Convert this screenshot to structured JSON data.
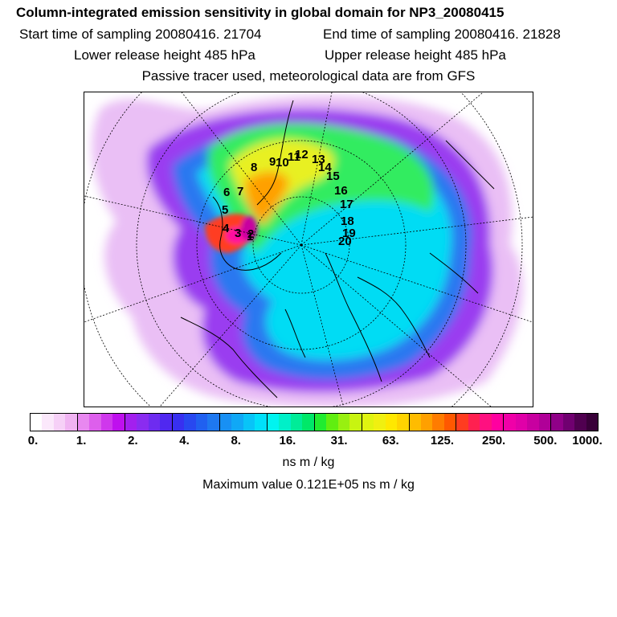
{
  "header": {
    "title": "Column-integrated emission sensitivity in global domain for NP3_20080415",
    "start_time": "Start time of sampling 20080416. 21704",
    "end_time": "End time of sampling 20080416. 21828",
    "lower_release": "Lower release height  485 hPa",
    "upper_release": "Upper release height  485 hPa",
    "tracer_note": "Passive tracer used, meteorological data are from GFS"
  },
  "colorbar": {
    "ticks": [
      "0.",
      "1.",
      "2.",
      "4.",
      "8.",
      "16.",
      "31.",
      "63.",
      "125.",
      "250.",
      "500.",
      "1000."
    ],
    "colors": [
      "#ffffff",
      "#fbe8fb",
      "#f6d0f7",
      "#f0b3f2",
      "#e888f0",
      "#dd5fec",
      "#cf38ec",
      "#bf10ee",
      "#a320ee",
      "#8a2cf0",
      "#6e2cf0",
      "#5028f0",
      "#3830f0",
      "#2848f0",
      "#2060f0",
      "#1e78f0",
      "#1890f4",
      "#10a8f6",
      "#08c4f8",
      "#00e0fa",
      "#00f4f0",
      "#00f0c8",
      "#00ec98",
      "#00e868",
      "#20ec30",
      "#60ee10",
      "#98f010",
      "#c8f410",
      "#e0f410",
      "#f0f010",
      "#ffe800",
      "#ffd400",
      "#ffbc00",
      "#ffa000",
      "#ff7c00",
      "#ff5800",
      "#ff3c20",
      "#ff2050",
      "#ff1080",
      "#ff00a0",
      "#f000a8",
      "#e000a8",
      "#c800a0",
      "#b00098",
      "#900088",
      "#700070",
      "#500050",
      "#380038"
    ],
    "units": "ns m / kg"
  },
  "max_value": "Maximum value  0.121E+05 ns m / kg",
  "map": {
    "track_labels": [
      "1",
      "2",
      "3",
      "4",
      "5",
      "6",
      "7",
      "8",
      "9",
      "10",
      "11",
      "12",
      "13",
      "14",
      "15",
      "16",
      "17",
      "18",
      "19",
      "20"
    ],
    "colors": {
      "cyan": "#00e8f0",
      "green": "#40ee40",
      "yellow": "#f0f010",
      "purple": "#b040f0",
      "magenta": "#ff10a0"
    }
  }
}
